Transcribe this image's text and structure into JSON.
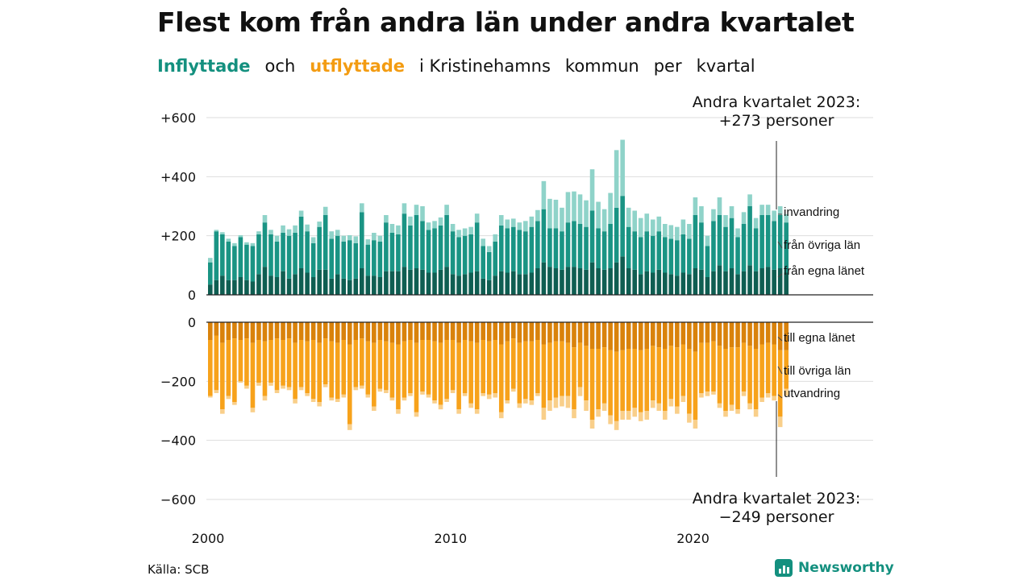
{
  "title": "Flest kom från andra län under andra kvartalet",
  "subtitle": {
    "part1": "Inflyttade",
    "part2": "och",
    "part3": "utflyttade",
    "part4": "i Kristinehamns",
    "part5": "kommun",
    "part6": "per",
    "part7": "kvartal"
  },
  "source": "Källa: SCB",
  "logo": "Newsworthy",
  "annotation_top": {
    "line1": "Andra kvartalet 2023:",
    "line2": "+273 personer"
  },
  "annotation_bottom": {
    "line1": "Andra kvartalet 2023:",
    "line2": "−249 personer"
  },
  "segment_labels": {
    "in_immigration": "invandring",
    "in_other_counties": "från övriga län",
    "in_own_county": "från egna länet",
    "out_own_county": "till egna länet",
    "out_other_counties": "till övriga län",
    "out_emigration": "utvandring"
  },
  "colors": {
    "in_own": "#0f5e52",
    "in_other": "#1a9484",
    "in_immig": "#8fd3c9",
    "out_own": "#d9820b",
    "out_other": "#f7a21b",
    "out_emig": "#f9cf8a",
    "grid": "#dddddd"
  },
  "chart_data": {
    "type": "bar",
    "stacked": true,
    "x_start": "2000 Q1",
    "x_ticks": [
      "2000",
      "2010",
      "2020"
    ],
    "y_ticks": [
      "+600",
      "+400",
      "+200",
      "0",
      "0",
      "−200",
      "−400",
      "−600"
    ],
    "ylim_in": [
      0,
      600
    ],
    "ylim_out": [
      -600,
      0
    ],
    "grid": true,
    "in_total": [
      125,
      220,
      212,
      190,
      175,
      202,
      178,
      175,
      215,
      270,
      220,
      200,
      235,
      222,
      235,
      285,
      238,
      195,
      248,
      298,
      215,
      220,
      200,
      202,
      198,
      310,
      188,
      210,
      200,
      270,
      240,
      235,
      310,
      265,
      305,
      300,
      245,
      250,
      262,
      305,
      240,
      220,
      225,
      230,
      275,
      190,
      165,
      205,
      270,
      255,
      258,
      245,
      250,
      265,
      287,
      385,
      325,
      322,
      295,
      348,
      350,
      340,
      320,
      425,
      315,
      290,
      345,
      490,
      525,
      295,
      285,
      260,
      275,
      255,
      265,
      240,
      236,
      230,
      255,
      240,
      330,
      300,
      200,
      290,
      330,
      270,
      300,
      225,
      280,
      340,
      260,
      305,
      305,
      285,
      300,
      273
    ],
    "in_own": [
      35,
      50,
      65,
      50,
      50,
      60,
      50,
      45,
      70,
      95,
      65,
      60,
      80,
      55,
      70,
      90,
      75,
      60,
      85,
      85,
      55,
      70,
      55,
      50,
      55,
      90,
      65,
      65,
      60,
      80,
      80,
      80,
      95,
      85,
      90,
      85,
      75,
      75,
      85,
      95,
      70,
      65,
      70,
      75,
      80,
      55,
      50,
      65,
      80,
      75,
      80,
      70,
      70,
      75,
      90,
      110,
      95,
      90,
      85,
      95,
      95,
      90,
      85,
      110,
      90,
      85,
      90,
      110,
      130,
      90,
      85,
      70,
      80,
      75,
      85,
      75,
      70,
      65,
      75,
      70,
      90,
      85,
      60,
      80,
      100,
      80,
      90,
      70,
      80,
      100,
      80,
      90,
      95,
      85,
      90,
      75
    ],
    "in_other": [
      75,
      165,
      140,
      130,
      115,
      135,
      120,
      120,
      135,
      150,
      140,
      120,
      130,
      145,
      140,
      175,
      140,
      115,
      145,
      185,
      135,
      130,
      125,
      135,
      120,
      190,
      105,
      120,
      120,
      165,
      130,
      125,
      180,
      150,
      180,
      165,
      145,
      150,
      150,
      175,
      145,
      130,
      130,
      130,
      165,
      110,
      95,
      115,
      155,
      150,
      150,
      150,
      145,
      155,
      160,
      180,
      130,
      135,
      130,
      150,
      155,
      150,
      145,
      175,
      135,
      130,
      150,
      185,
      205,
      140,
      130,
      125,
      135,
      125,
      130,
      120,
      120,
      120,
      130,
      120,
      180,
      160,
      105,
      170,
      170,
      150,
      170,
      125,
      160,
      200,
      145,
      180,
      175,
      165,
      180,
      170
    ],
    "out_total": [
      -255,
      -240,
      -310,
      -260,
      -280,
      -205,
      -225,
      -305,
      -215,
      -265,
      -215,
      -240,
      -225,
      -230,
      -275,
      -230,
      -250,
      -270,
      -285,
      -220,
      -265,
      -270,
      -255,
      -365,
      -230,
      -225,
      -255,
      -300,
      -235,
      -240,
      -265,
      -310,
      -265,
      -250,
      -320,
      -245,
      -255,
      -275,
      -295,
      -270,
      -240,
      -310,
      -250,
      -290,
      -310,
      -250,
      -260,
      -255,
      -325,
      -275,
      -235,
      -290,
      -275,
      -280,
      -250,
      -330,
      -300,
      -290,
      -285,
      -290,
      -325,
      -250,
      -300,
      -360,
      -320,
      -300,
      -345,
      -365,
      -330,
      -330,
      -320,
      -335,
      -330,
      -290,
      -300,
      -330,
      -285,
      -310,
      -270,
      -340,
      -360,
      -255,
      -250,
      -245,
      -290,
      -320,
      -300,
      -310,
      -250,
      -295,
      -320,
      -270,
      -255,
      -265,
      -355,
      -249
    ],
    "out_own": [
      -60,
      -45,
      -70,
      -60,
      -55,
      -60,
      -55,
      -70,
      -60,
      -65,
      -60,
      -55,
      -60,
      -55,
      -70,
      -60,
      -65,
      -60,
      -70,
      -55,
      -65,
      -70,
      -60,
      -75,
      -60,
      -55,
      -65,
      -70,
      -60,
      -65,
      -70,
      -75,
      -65,
      -60,
      -70,
      -60,
      -60,
      -65,
      -70,
      -60,
      -60,
      -70,
      -60,
      -65,
      -70,
      -60,
      -65,
      -60,
      -75,
      -65,
      -55,
      -70,
      -65,
      -65,
      -60,
      -75,
      -70,
      -65,
      -65,
      -70,
      -85,
      -70,
      -80,
      -90,
      -90,
      -85,
      -95,
      -100,
      -95,
      -90,
      -90,
      -95,
      -90,
      -80,
      -85,
      -90,
      -80,
      -85,
      -75,
      -90,
      -100,
      -70,
      -70,
      -65,
      -80,
      -90,
      -85,
      -85,
      -70,
      -80,
      -90,
      -75,
      -70,
      -75,
      -95,
      -95
    ],
    "out_other": [
      -190,
      -185,
      -225,
      -190,
      -215,
      -140,
      -160,
      -220,
      -145,
      -185,
      -145,
      -175,
      -155,
      -165,
      -190,
      -160,
      -175,
      -200,
      -200,
      -155,
      -190,
      -190,
      -185,
      -270,
      -160,
      -160,
      -180,
      -215,
      -165,
      -165,
      -185,
      -220,
      -190,
      -180,
      -235,
      -175,
      -185,
      -200,
      -210,
      -200,
      -170,
      -225,
      -180,
      -210,
      -225,
      -180,
      -180,
      -180,
      -230,
      -200,
      -170,
      -205,
      -195,
      -200,
      -180,
      -215,
      -195,
      -190,
      -185,
      -180,
      -210,
      -150,
      -185,
      -240,
      -205,
      -190,
      -220,
      -235,
      -205,
      -210,
      -200,
      -210,
      -210,
      -185,
      -190,
      -210,
      -180,
      -200,
      -175,
      -220,
      -230,
      -170,
      -165,
      -170,
      -195,
      -210,
      -195,
      -210,
      -165,
      -195,
      -205,
      -180,
      -170,
      -175,
      -225,
      -130
    ]
  }
}
